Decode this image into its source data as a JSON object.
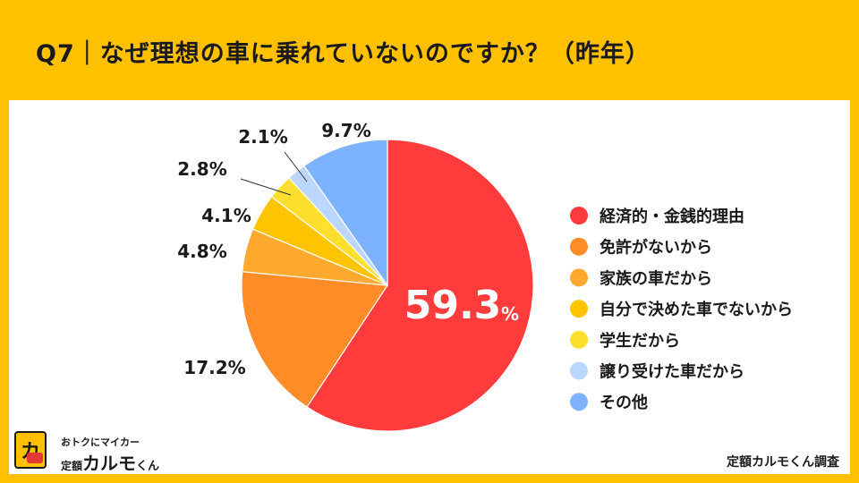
{
  "header": {
    "title": "Q7｜なぜ理想の車に乗れていないのですか？（昨年）"
  },
  "credit": "定額カルモくん調査",
  "logo": {
    "tagline": "おトクにマイカー",
    "prefix": "定額",
    "name": "カルモ",
    "suffix": "くん",
    "mark": "カ"
  },
  "colors": {
    "background": "#FFC000",
    "panel": "#FFFFFF"
  },
  "chart_data": {
    "type": "pie",
    "title": "",
    "start_angle_deg": 0,
    "direction": "clockwise",
    "legend_position": "right",
    "unit": "%",
    "slices": [
      {
        "label": "経済的・金銭的理由",
        "value": 59.3,
        "display": "59.3",
        "color": "#FF3B3B"
      },
      {
        "label": "免許がないから",
        "value": 17.2,
        "display": "17.2%",
        "color": "#FF8C26"
      },
      {
        "label": "家族の車だから",
        "value": 4.8,
        "display": "4.8%",
        "color": "#FFA92E"
      },
      {
        "label": "自分で決めた車でないから",
        "value": 4.1,
        "display": "4.1%",
        "color": "#FFC400"
      },
      {
        "label": "学生だから",
        "value": 2.8,
        "display": "2.8%",
        "color": "#FFDF2E"
      },
      {
        "label": "譲り受けた車だから",
        "value": 2.1,
        "display": "2.1%",
        "color": "#BCD7FF"
      },
      {
        "label": "その他",
        "value": 9.7,
        "display": "9.7%",
        "color": "#7DB2FF"
      }
    ]
  }
}
